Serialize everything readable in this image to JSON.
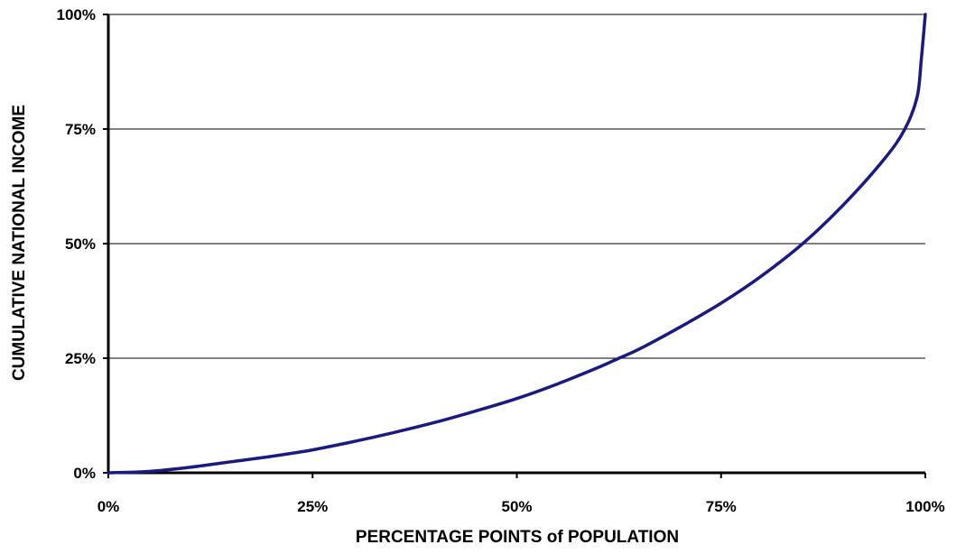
{
  "chart_data": {
    "type": "line",
    "title": "",
    "xlabel": "PERCENTAGE POINTS of POPULATION",
    "ylabel": "CUMULATIVE NATIONAL INCOME",
    "xlim": [
      0,
      100
    ],
    "ylim": [
      0,
      100
    ],
    "x_ticks": [
      "0%",
      "25%",
      "50%",
      "75%",
      "100%"
    ],
    "y_ticks": [
      "0%",
      "25%",
      "50%",
      "75%",
      "100%"
    ],
    "grid": "horizontal",
    "legend": "none",
    "colors": {
      "line": "#1a1a80",
      "grid": "#000000",
      "axis": "#000000"
    },
    "series": [
      {
        "x": [
          0,
          5,
          10,
          15,
          20,
          25,
          30,
          35,
          40,
          45,
          50,
          55,
          60,
          62.5,
          65,
          70,
          75,
          80,
          85,
          90,
          95,
          97.5,
          99,
          99.5,
          100
        ],
        "y": [
          0,
          0.3,
          1.2,
          2.4,
          3.6,
          5,
          6.8,
          8.8,
          11,
          13.5,
          16.2,
          19.4,
          23,
          25,
          27,
          31.8,
          37,
          43,
          50,
          58.5,
          68.5,
          75,
          82,
          90,
          100
        ]
      }
    ]
  }
}
